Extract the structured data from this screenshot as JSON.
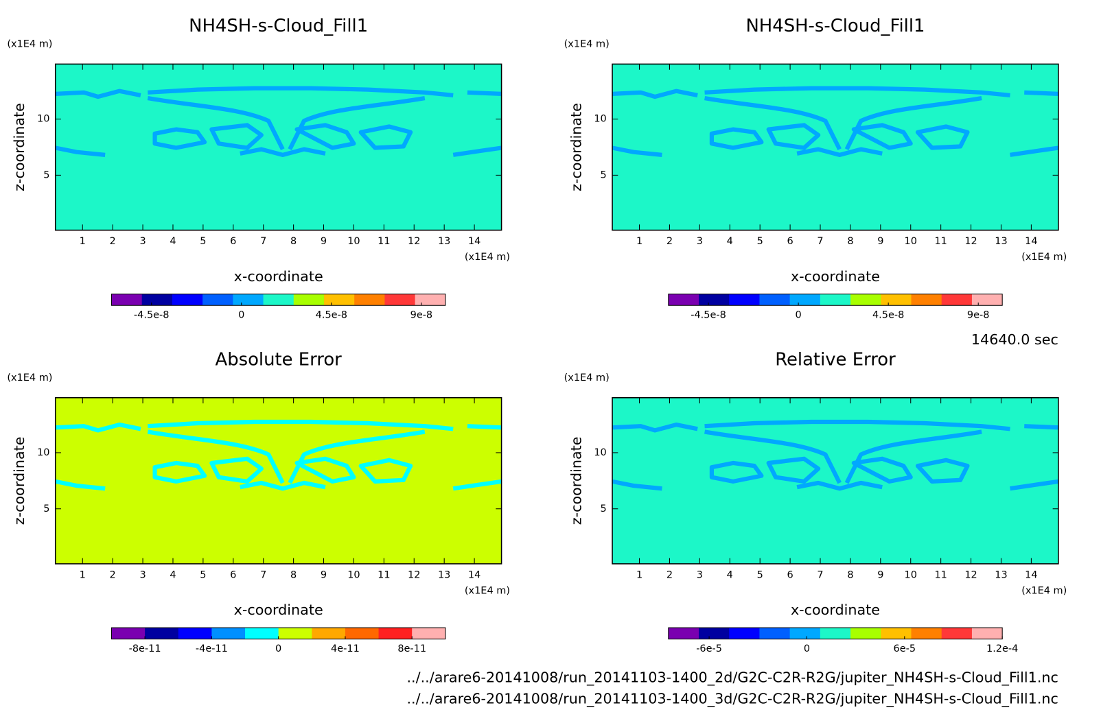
{
  "chart_data": [
    {
      "type": "contour",
      "title": "NH4SH-s-Cloud_Fill1",
      "xlabel": "x-coordinate",
      "ylabel": "z-coordinate",
      "x_unit": "(x1E4 m)",
      "y_unit": "(x1E4 m)",
      "xlim": [
        0.1,
        14.9
      ],
      "ylim": [
        0.1,
        14.9
      ],
      "xticks": [
        1,
        2,
        3,
        4,
        5,
        6,
        7,
        8,
        9,
        10,
        11,
        12,
        13,
        14
      ],
      "yticks": [
        5,
        10
      ],
      "color": "#1cf7c8",
      "colorbar": {
        "lim": [
          -6.5e-08,
          1.02e-07
        ],
        "colors": [
          "#7a00b0",
          "#0000a0",
          "#0000ff",
          "#0060ff",
          "#00a8ff",
          "#1cf7c8",
          "#a8ff00",
          "#ffc000",
          "#ff8000",
          "#ff3838",
          "#ffb0b0"
        ],
        "ticks": [
          {
            "value": -4.5e-08,
            "label": "-4.5e-8"
          },
          {
            "value": 0,
            "label": "0"
          },
          {
            "value": 4.5e-08,
            "label": "4.5e-8"
          },
          {
            "value": 9e-08,
            "label": "9e-8"
          }
        ]
      }
    },
    {
      "type": "contour",
      "title": "NH4SH-s-Cloud_Fill1",
      "xlabel": "x-coordinate",
      "ylabel": "z-coordinate",
      "x_unit": "(x1E4 m)",
      "y_unit": "(x1E4 m)",
      "xlim": [
        0.1,
        14.9
      ],
      "ylim": [
        0.1,
        14.9
      ],
      "xticks": [
        1,
        2,
        3,
        4,
        5,
        6,
        7,
        8,
        9,
        10,
        11,
        12,
        13,
        14
      ],
      "yticks": [
        5,
        10
      ],
      "color": "#1cf7c8",
      "colorbar": {
        "lim": [
          -6.5e-08,
          1.02e-07
        ],
        "colors": [
          "#7a00b0",
          "#0000a0",
          "#0000ff",
          "#0060ff",
          "#00a8ff",
          "#1cf7c8",
          "#a8ff00",
          "#ffc000",
          "#ff8000",
          "#ff3838",
          "#ffb0b0"
        ],
        "ticks": [
          {
            "value": -4.5e-08,
            "label": "-4.5e-8"
          },
          {
            "value": 0,
            "label": "0"
          },
          {
            "value": 4.5e-08,
            "label": "4.5e-8"
          },
          {
            "value": 9e-08,
            "label": "9e-8"
          }
        ]
      }
    },
    {
      "type": "contour",
      "title": "Absolute Error",
      "xlabel": "x-coordinate",
      "ylabel": "z-coordinate",
      "x_unit": "(x1E4 m)",
      "y_unit": "(x1E4 m)",
      "xlim": [
        0.1,
        14.9
      ],
      "ylim": [
        0.1,
        14.9
      ],
      "xticks": [
        1,
        2,
        3,
        4,
        5,
        6,
        7,
        8,
        9,
        10,
        11,
        12,
        13,
        14
      ],
      "yticks": [
        5,
        10
      ],
      "color": "#ccff00",
      "colorbar": {
        "lim": [
          -1e-10,
          1e-10
        ],
        "colors": [
          "#7a00b0",
          "#0000a0",
          "#0000ff",
          "#0090ff",
          "#00ffff",
          "#ccff00",
          "#ffa800",
          "#ff6800",
          "#ff2020",
          "#ffb0b0"
        ],
        "ticks": [
          {
            "value": -8e-11,
            "label": "-8e-11"
          },
          {
            "value": -4e-11,
            "label": "-4e-11"
          },
          {
            "value": 0,
            "label": "0"
          },
          {
            "value": 4e-11,
            "label": "4e-11"
          },
          {
            "value": 8e-11,
            "label": "8e-11"
          }
        ]
      }
    },
    {
      "type": "contour",
      "title": "Relative Error",
      "xlabel": "x-coordinate",
      "ylabel": "z-coordinate",
      "x_unit": "(x1E4 m)",
      "y_unit": "(x1E4 m)",
      "xlim": [
        0.1,
        14.9
      ],
      "ylim": [
        0.1,
        14.9
      ],
      "xticks": [
        1,
        2,
        3,
        4,
        5,
        6,
        7,
        8,
        9,
        10,
        11,
        12,
        13,
        14
      ],
      "yticks": [
        5,
        10
      ],
      "color": "#1cf7c8",
      "colorbar": {
        "lim": [
          -8.5e-05,
          0.00012
        ],
        "colors": [
          "#7a00b0",
          "#0000a0",
          "#0000ff",
          "#0060ff",
          "#00a8ff",
          "#1cf7c8",
          "#a8ff00",
          "#ffc000",
          "#ff8000",
          "#ff3838",
          "#ffb0b0"
        ],
        "ticks": [
          {
            "value": -6e-05,
            "label": "-6e-5"
          },
          {
            "value": 0,
            "label": "0"
          },
          {
            "value": 6e-05,
            "label": "6e-5"
          },
          {
            "value": 0.00012,
            "label": "1.2e-4"
          }
        ]
      }
    }
  ],
  "time_label": "14640.0 sec",
  "files": [
    "../../arare6-20141008/run_20141103-1400_2d/G2C-C2R-R2G/jupiter_NH4SH-s-Cloud_Fill1.nc",
    "../../arare6-20141008/run_20141103-1400_3d/G2C-C2R-R2G/jupiter_NH4SH-s-Cloud_Fill1.nc"
  ]
}
